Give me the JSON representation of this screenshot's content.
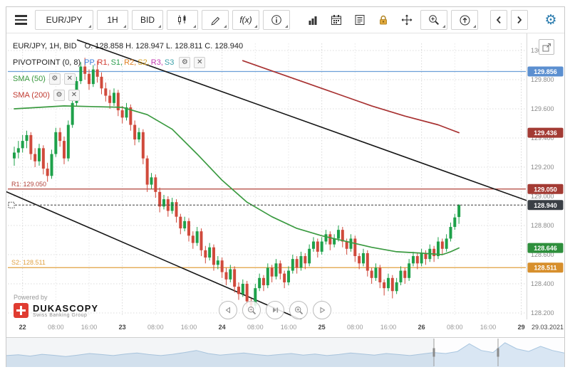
{
  "toolbar": {
    "instrument": "EUR/JPY",
    "period": "1H",
    "price_type": "BID",
    "fx_label": "f(x)"
  },
  "icons": {
    "gear_glyph": "⚙",
    "close_glyph": "✕"
  },
  "legend": {
    "title": "EUR/JPY, 1H, BID",
    "ohlc": "O. 128.858  H. 128.947  L. 128.811  C. 128.940",
    "pivot": {
      "name": "PIVOTPOINT (0, 8)",
      "tokens": [
        {
          "label": "PP,",
          "color": "#3d7edb"
        },
        {
          "label": "R1,",
          "color": "#d03a30"
        },
        {
          "label": "S1,",
          "color": "#2e9e4f"
        },
        {
          "label": "R2,",
          "color": "#e07f20"
        },
        {
          "label": "S2,",
          "color": "#d6a022"
        },
        {
          "label": "R3,",
          "color": "#c23ab0"
        },
        {
          "label": "S3",
          "color": "#3aa0a8"
        }
      ]
    },
    "sma50": {
      "name": "SMA (50)",
      "color": "#3a9a40"
    },
    "sma200": {
      "name": "SMA (200)",
      "color": "#c03a30"
    }
  },
  "footer": {
    "powered_by": "Powered by",
    "brand": "DUKASCOPY",
    "brand_sub": "Swiss Banking Group"
  },
  "axis": {
    "date_label": "29.03.2021"
  },
  "chart_data": {
    "type": "candlestick",
    "instrument": "EUR/JPY",
    "period": "1H",
    "price_side": "BID",
    "ohlc_last": {
      "o": 128.858,
      "h": 128.947,
      "l": 128.811,
      "c": 128.94
    },
    "y_range": [
      128.2,
      130.0
    ],
    "y_ticks": [
      "130.000",
      "129.800",
      "129.600",
      "129.400",
      "129.200",
      "129.000",
      "128.800",
      "128.600",
      "128.400",
      "128.200"
    ],
    "x_ticks": [
      {
        "label": "22",
        "i": 2,
        "major": true
      },
      {
        "label": "08:00",
        "i": 10
      },
      {
        "label": "16:00",
        "i": 18
      },
      {
        "label": "23",
        "i": 26,
        "major": true
      },
      {
        "label": "08:00",
        "i": 34
      },
      {
        "label": "16:00",
        "i": 42
      },
      {
        "label": "24",
        "i": 50,
        "major": true
      },
      {
        "label": "08:00",
        "i": 58
      },
      {
        "label": "16:00",
        "i": 66
      },
      {
        "label": "25",
        "i": 74,
        "major": true
      },
      {
        "label": "08:00",
        "i": 82
      },
      {
        "label": "16:00",
        "i": 90
      },
      {
        "label": "26",
        "i": 98,
        "major": true
      },
      {
        "label": "08:00",
        "i": 106
      },
      {
        "label": "16:00",
        "i": 114
      },
      {
        "label": "29",
        "i": 122,
        "major": true
      }
    ],
    "candle_colors": {
      "up": "#1ea14a",
      "down": "#d04a3c"
    },
    "candles": [
      [
        129.26,
        129.34,
        129.21,
        129.3
      ],
      [
        129.3,
        129.38,
        129.26,
        129.33
      ],
      [
        129.33,
        129.42,
        129.3,
        129.38
      ],
      [
        129.38,
        129.45,
        129.33,
        129.42
      ],
      [
        129.42,
        129.44,
        129.25,
        129.29
      ],
      [
        129.29,
        129.33,
        129.2,
        129.24
      ],
      [
        129.24,
        129.36,
        129.21,
        129.33
      ],
      [
        129.33,
        129.35,
        129.15,
        129.19
      ],
      [
        129.19,
        129.23,
        129.1,
        129.14
      ],
      [
        129.14,
        129.32,
        129.12,
        129.29
      ],
      [
        129.29,
        129.47,
        129.27,
        129.44
      ],
      [
        129.44,
        129.47,
        129.34,
        129.38
      ],
      [
        129.38,
        129.41,
        129.22,
        129.26
      ],
      [
        129.26,
        129.52,
        129.24,
        129.49
      ],
      [
        129.49,
        129.67,
        129.47,
        129.64
      ],
      [
        129.64,
        129.82,
        129.62,
        129.79
      ],
      [
        129.79,
        129.92,
        129.77,
        129.89
      ],
      [
        129.89,
        129.95,
        129.8,
        129.84
      ],
      [
        129.84,
        129.87,
        129.73,
        129.77
      ],
      [
        129.77,
        129.9,
        129.75,
        129.87
      ],
      [
        129.87,
        129.93,
        129.78,
        129.82
      ],
      [
        129.82,
        129.85,
        129.7,
        129.74
      ],
      [
        129.74,
        129.78,
        129.65,
        129.69
      ],
      [
        129.69,
        129.73,
        129.6,
        129.64
      ],
      [
        129.64,
        129.74,
        129.62,
        129.71
      ],
      [
        129.71,
        129.73,
        129.55,
        129.59
      ],
      [
        129.59,
        129.62,
        129.5,
        129.54
      ],
      [
        129.54,
        129.64,
        129.52,
        129.61
      ],
      [
        129.61,
        129.63,
        129.45,
        129.49
      ],
      [
        129.49,
        129.52,
        129.35,
        129.39
      ],
      [
        129.39,
        129.47,
        129.37,
        129.44
      ],
      [
        129.44,
        129.46,
        129.22,
        129.26
      ],
      [
        129.26,
        129.28,
        129.03,
        129.08
      ],
      [
        129.08,
        129.16,
        129.05,
        129.13
      ],
      [
        129.13,
        129.15,
        128.99,
        129.03
      ],
      [
        129.03,
        129.06,
        128.89,
        128.93
      ],
      [
        128.93,
        129.01,
        128.91,
        128.98
      ],
      [
        128.98,
        129.0,
        128.86,
        128.9
      ],
      [
        128.9,
        128.99,
        128.88,
        128.96
      ],
      [
        128.96,
        128.98,
        128.82,
        128.86
      ],
      [
        128.86,
        128.88,
        128.74,
        128.78
      ],
      [
        128.78,
        128.86,
        128.76,
        128.83
      ],
      [
        128.83,
        128.85,
        128.69,
        128.73
      ],
      [
        128.73,
        128.76,
        128.64,
        128.68
      ],
      [
        128.68,
        128.79,
        128.66,
        128.76
      ],
      [
        128.76,
        128.78,
        128.59,
        128.63
      ],
      [
        128.63,
        128.66,
        128.54,
        128.58
      ],
      [
        128.58,
        128.68,
        128.56,
        128.65
      ],
      [
        128.65,
        128.67,
        128.49,
        128.53
      ],
      [
        128.53,
        128.59,
        128.5,
        128.56
      ],
      [
        128.56,
        128.58,
        128.44,
        128.48
      ],
      [
        128.48,
        128.51,
        128.39,
        128.43
      ],
      [
        128.43,
        128.53,
        128.41,
        128.5
      ],
      [
        128.5,
        128.52,
        128.34,
        128.38
      ],
      [
        128.38,
        128.41,
        128.29,
        128.33
      ],
      [
        128.33,
        128.43,
        128.31,
        128.4
      ],
      [
        128.4,
        128.42,
        128.24,
        128.28
      ],
      [
        128.28,
        128.3,
        128.21,
        128.25
      ],
      [
        128.25,
        128.4,
        128.23,
        128.37
      ],
      [
        128.37,
        128.47,
        128.35,
        128.44
      ],
      [
        128.44,
        128.46,
        128.35,
        128.39
      ],
      [
        128.39,
        128.54,
        128.37,
        128.51
      ],
      [
        128.51,
        128.53,
        128.41,
        128.45
      ],
      [
        128.45,
        128.57,
        128.43,
        128.54
      ],
      [
        128.54,
        128.56,
        128.43,
        128.47
      ],
      [
        128.47,
        128.49,
        128.37,
        128.41
      ],
      [
        128.41,
        128.52,
        128.39,
        128.49
      ],
      [
        128.49,
        128.6,
        128.47,
        128.57
      ],
      [
        128.57,
        128.59,
        128.47,
        128.51
      ],
      [
        128.51,
        128.62,
        128.49,
        128.59
      ],
      [
        128.59,
        128.61,
        128.5,
        128.54
      ],
      [
        128.54,
        128.67,
        128.52,
        128.64
      ],
      [
        128.64,
        128.72,
        128.62,
        128.69
      ],
      [
        128.69,
        128.71,
        128.58,
        128.62
      ],
      [
        128.62,
        128.72,
        128.6,
        128.69
      ],
      [
        128.69,
        128.77,
        128.67,
        128.74
      ],
      [
        128.74,
        128.76,
        128.63,
        128.67
      ],
      [
        128.67,
        128.74,
        128.65,
        128.71
      ],
      [
        128.71,
        128.8,
        128.69,
        128.77
      ],
      [
        128.77,
        128.79,
        128.65,
        128.69
      ],
      [
        128.69,
        128.71,
        128.6,
        128.64
      ],
      [
        128.64,
        128.74,
        128.62,
        128.71
      ],
      [
        128.71,
        128.73,
        128.55,
        128.59
      ],
      [
        128.59,
        128.61,
        128.5,
        128.54
      ],
      [
        128.54,
        128.64,
        128.52,
        128.61
      ],
      [
        128.61,
        128.63,
        128.45,
        128.49
      ],
      [
        128.49,
        128.51,
        128.4,
        128.44
      ],
      [
        128.44,
        128.54,
        128.42,
        128.51
      ],
      [
        128.51,
        128.53,
        128.37,
        128.41
      ],
      [
        128.41,
        128.43,
        128.32,
        128.37
      ],
      [
        128.37,
        128.47,
        128.35,
        128.44
      ],
      [
        128.44,
        128.46,
        128.3,
        128.35
      ],
      [
        128.35,
        128.44,
        128.33,
        128.41
      ],
      [
        128.41,
        128.52,
        128.39,
        128.49
      ],
      [
        128.49,
        128.51,
        128.4,
        128.44
      ],
      [
        128.44,
        128.57,
        128.42,
        128.54
      ],
      [
        128.54,
        128.62,
        128.52,
        128.59
      ],
      [
        128.59,
        128.61,
        128.5,
        128.54
      ],
      [
        128.54,
        128.64,
        128.52,
        128.61
      ],
      [
        128.61,
        128.63,
        128.53,
        128.57
      ],
      [
        128.57,
        128.67,
        128.55,
        128.64
      ],
      [
        128.64,
        128.66,
        128.55,
        128.59
      ],
      [
        128.59,
        128.72,
        128.57,
        128.69
      ],
      [
        128.69,
        128.71,
        128.6,
        128.64
      ],
      [
        128.64,
        128.74,
        128.62,
        128.71
      ],
      [
        128.71,
        128.82,
        128.69,
        128.79
      ],
      [
        128.79,
        128.88,
        128.77,
        128.855
      ],
      [
        128.858,
        128.947,
        128.811,
        128.94
      ]
    ],
    "sma50": {
      "color": "#3a9a40",
      "points": [
        [
          0,
          129.6
        ],
        [
          12,
          129.62
        ],
        [
          26,
          129.61
        ],
        [
          32,
          129.56
        ],
        [
          38,
          129.46
        ],
        [
          44,
          129.29
        ],
        [
          50,
          129.11
        ],
        [
          56,
          128.96
        ],
        [
          62,
          128.86
        ],
        [
          68,
          128.78
        ],
        [
          74,
          128.73
        ],
        [
          80,
          128.69
        ],
        [
          86,
          128.65
        ],
        [
          92,
          128.62
        ],
        [
          98,
          128.61
        ],
        [
          103,
          128.6
        ],
        [
          105,
          128.62
        ],
        [
          107,
          128.646
        ]
      ]
    },
    "sma200": {
      "color": "#a83232",
      "points": [
        [
          55,
          129.93
        ],
        [
          62,
          129.86
        ],
        [
          70,
          129.78
        ],
        [
          78,
          129.7
        ],
        [
          86,
          129.62
        ],
        [
          94,
          129.55
        ],
        [
          102,
          129.49
        ],
        [
          107,
          129.436
        ]
      ]
    },
    "levels": [
      {
        "label": "",
        "price": 129.856,
        "color": "#6b9fd8",
        "badge_bg": "#5b8fd0"
      },
      {
        "label": "R1: 129.050",
        "price": 129.05,
        "color": "#b04038",
        "badge_bg": "#a33b34"
      },
      {
        "label": "S2: 128.511",
        "price": 128.511,
        "color": "#e0a040",
        "badge_bg": "#d78f2c"
      }
    ],
    "ma_badges": [
      {
        "text": "129.436",
        "price": 129.436,
        "bg": "#a33b34"
      },
      {
        "text": "128.646",
        "price": 128.646,
        "bg": "#2e8f3c"
      }
    ],
    "current_price": {
      "price": 128.94,
      "badge_bg": "#3a3f45"
    },
    "trendlines": [
      {
        "points": [
          [
            15.1,
            130.073
          ],
          [
            124.3,
            128.961
          ]
        ]
      },
      {
        "points": [
          [
            -2.1,
            129.034
          ],
          [
            72.0,
            128.117
          ]
        ]
      }
    ],
    "overview": [
      0.42,
      0.45,
      0.4,
      0.47,
      0.43,
      0.38,
      0.44,
      0.5,
      0.46,
      0.42,
      0.48,
      0.52,
      0.46,
      0.42,
      0.47,
      0.54,
      0.62,
      0.5,
      0.44,
      0.48,
      0.52,
      0.46,
      0.42,
      0.46,
      0.5,
      0.44,
      0.48,
      0.42,
      0.46,
      0.52,
      0.48,
      0.44,
      0.5,
      0.46,
      0.42,
      0.48,
      0.54,
      0.5,
      0.58,
      0.88,
      0.62,
      0.54,
      0.92,
      0.68,
      0.58,
      0.78,
      0.62,
      0.52
    ],
    "overview_viewport": [
      600,
      690
    ]
  }
}
